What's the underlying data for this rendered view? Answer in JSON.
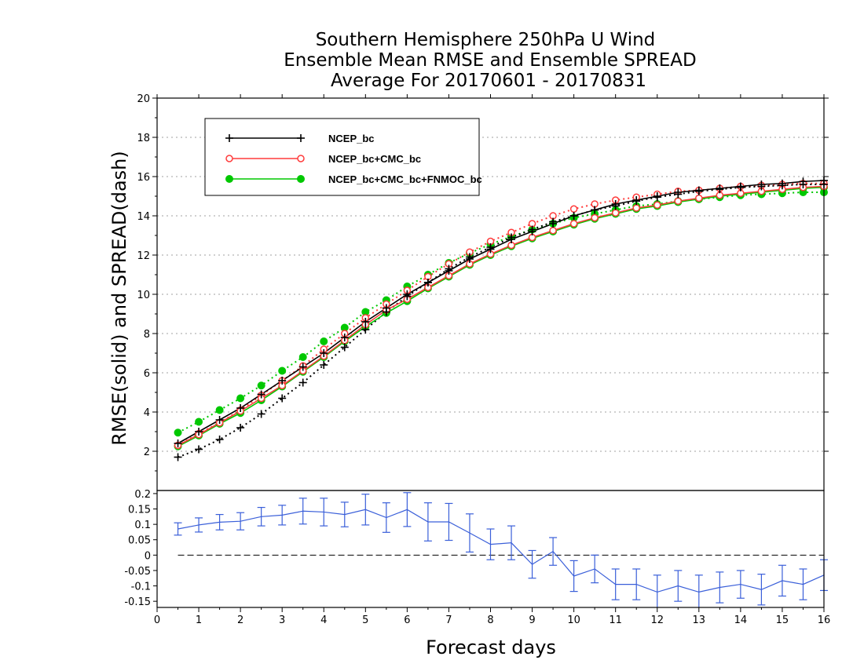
{
  "title": {
    "line1": "Southern Hemisphere 250hPa U Wind",
    "line2": "Ensemble Mean RMSE and Ensemble SPREAD",
    "line3": "Average For 20170601 - 20170831"
  },
  "colors": {
    "ncep": "#000000",
    "ncep_cmc": "#ff3b3b",
    "ncep_cmc_fnmoc": "#00c800",
    "diff": "#3a5fd9"
  },
  "chart_data": [
    {
      "type": "line",
      "xlabel": "Forecast days",
      "ylabel": "RMSE(solid) and SPREAD(dash)",
      "xlim": [
        0,
        16
      ],
      "ylim": [
        0,
        20
      ],
      "x_ticks": [
        0,
        1,
        2,
        3,
        4,
        5,
        6,
        7,
        8,
        9,
        10,
        11,
        12,
        13,
        14,
        15,
        16
      ],
      "y_ticks": [
        2,
        4,
        6,
        8,
        10,
        12,
        14,
        16,
        18,
        20
      ],
      "y_tick_labels": [
        "2",
        "4",
        "6",
        "8",
        "10",
        "12",
        "14",
        "16",
        "18",
        "20"
      ],
      "grid": "horizontal dotted",
      "legend_position": "top-left",
      "x": [
        0.5,
        1,
        1.5,
        2,
        2.5,
        3,
        3.5,
        4,
        4.5,
        5,
        5.5,
        6,
        6.5,
        7,
        7.5,
        8,
        8.5,
        9,
        9.5,
        10,
        10.5,
        11,
        11.5,
        12,
        12.5,
        13,
        13.5,
        14,
        14.5,
        15,
        15.5,
        16
      ],
      "series": [
        {
          "name": "NCEP_bc",
          "color_key": "ncep",
          "marker": "plus",
          "rmse": [
            2.4,
            3.0,
            3.6,
            4.2,
            4.9,
            5.6,
            6.3,
            7.0,
            7.8,
            8.6,
            9.3,
            10.0,
            10.6,
            11.2,
            11.8,
            12.3,
            12.8,
            13.2,
            13.6,
            14.0,
            14.3,
            14.6,
            14.8,
            15.0,
            15.2,
            15.3,
            15.4,
            15.5,
            15.6,
            15.65,
            15.75,
            15.8
          ],
          "spread": [
            1.7,
            2.1,
            2.6,
            3.2,
            3.9,
            4.7,
            5.5,
            6.4,
            7.3,
            8.2,
            9.1,
            9.9,
            10.6,
            11.3,
            11.9,
            12.4,
            12.9,
            13.3,
            13.7,
            14.0,
            14.3,
            14.5,
            14.75,
            14.95,
            15.1,
            15.25,
            15.35,
            15.45,
            15.5,
            15.55,
            15.6,
            15.6
          ]
        },
        {
          "name": "NCEP_bc+CMC_bc",
          "color_key": "ncep_cmc",
          "marker": "open-circle",
          "rmse": [
            2.3,
            2.85,
            3.45,
            4.05,
            4.7,
            5.35,
            6.1,
            6.85,
            7.65,
            8.45,
            9.2,
            9.75,
            10.35,
            10.95,
            11.55,
            12.05,
            12.5,
            12.9,
            13.25,
            13.6,
            13.9,
            14.15,
            14.4,
            14.55,
            14.75,
            14.9,
            15.05,
            15.15,
            15.25,
            15.35,
            15.45,
            15.5
          ],
          "spread": [
            2.3,
            2.9,
            3.45,
            4.1,
            4.85,
            5.6,
            6.35,
            7.2,
            8.0,
            8.8,
            9.5,
            10.2,
            10.9,
            11.55,
            12.15,
            12.7,
            13.15,
            13.6,
            14.0,
            14.35,
            14.6,
            14.8,
            14.95,
            15.1,
            15.25,
            15.3,
            15.4,
            15.5,
            15.55,
            15.6,
            15.65,
            15.65
          ]
        },
        {
          "name": "NCEP_bc+CMC_bc+FNMOC_bc",
          "color_key": "ncep_cmc_fnmoc",
          "marker": "filled-circle",
          "rmse": [
            2.25,
            2.8,
            3.4,
            3.95,
            4.6,
            5.3,
            6.05,
            6.8,
            7.6,
            8.35,
            9.05,
            9.65,
            10.3,
            10.9,
            11.5,
            12.0,
            12.45,
            12.85,
            13.2,
            13.55,
            13.85,
            14.1,
            14.35,
            14.5,
            14.7,
            14.85,
            15.0,
            15.1,
            15.2,
            15.3,
            15.4,
            15.45
          ],
          "spread": [
            2.95,
            3.5,
            4.1,
            4.7,
            5.35,
            6.1,
            6.8,
            7.6,
            8.3,
            9.1,
            9.7,
            10.4,
            11.0,
            11.6,
            12.1,
            12.55,
            12.95,
            13.3,
            13.6,
            13.9,
            14.1,
            14.3,
            14.5,
            14.6,
            14.75,
            14.85,
            14.95,
            15.05,
            15.1,
            15.15,
            15.2,
            15.2
          ]
        }
      ]
    },
    {
      "type": "line",
      "xlim": [
        0,
        16
      ],
      "ylim": [
        -0.17,
        0.21
      ],
      "x_ticks": [
        0,
        1,
        2,
        3,
        4,
        5,
        6,
        7,
        8,
        9,
        10,
        11,
        12,
        13,
        14,
        15,
        16
      ],
      "y_ticks": [
        -0.15,
        -0.1,
        -0.05,
        0,
        0.05,
        0.1,
        0.15,
        0.2
      ],
      "y_tick_labels": [
        "-0.15",
        "-0.1",
        "-0.05",
        "0",
        "0.05",
        "0.1",
        "0.15",
        "0.2"
      ],
      "zero_line": "dashed",
      "x": [
        0.5,
        1,
        1.5,
        2,
        2.5,
        3,
        3.5,
        4,
        4.5,
        5,
        5.5,
        6,
        6.5,
        7,
        7.5,
        8,
        8.5,
        9,
        9.5,
        10,
        10.5,
        11,
        11.5,
        12,
        12.5,
        13,
        13.5,
        14,
        14.5,
        15,
        15.5,
        16
      ],
      "values": [
        0.085,
        0.098,
        0.107,
        0.11,
        0.125,
        0.13,
        0.143,
        0.14,
        0.132,
        0.148,
        0.122,
        0.148,
        0.108,
        0.108,
        0.072,
        0.035,
        0.04,
        -0.03,
        0.012,
        -0.068,
        -0.045,
        -0.095,
        -0.095,
        -0.12,
        -0.1,
        -0.12,
        -0.105,
        -0.095,
        -0.112,
        -0.083,
        -0.095,
        -0.065
      ],
      "error": [
        0.02,
        0.023,
        0.025,
        0.028,
        0.03,
        0.032,
        0.042,
        0.045,
        0.04,
        0.05,
        0.048,
        0.055,
        0.062,
        0.06,
        0.062,
        0.05,
        0.055,
        0.045,
        0.045,
        0.05,
        0.045,
        0.05,
        0.05,
        0.055,
        0.05,
        0.055,
        0.05,
        0.045,
        0.05,
        0.05,
        0.05,
        0.05
      ]
    }
  ]
}
